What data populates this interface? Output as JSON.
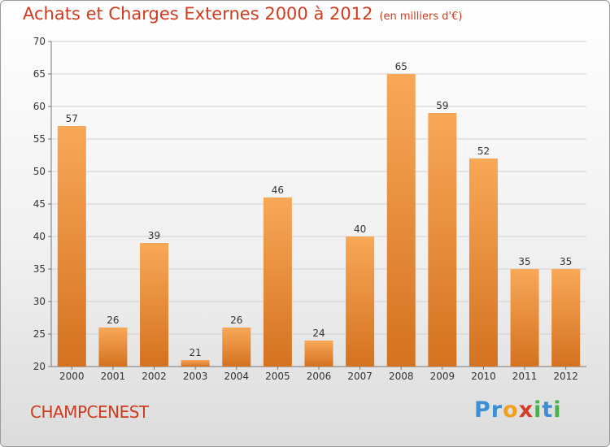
{
  "title": "Achats et Charges Externes 2000 à 2012",
  "subtitle": "(en milliers d'€)",
  "commune": "CHAMPCENEST",
  "logo": {
    "letters": [
      "P",
      "r",
      "o",
      "x",
      "i",
      "t",
      "i"
    ],
    "colors": [
      "#3b8fd6",
      "#3b8fd6",
      "#f0a020",
      "#d63b2a",
      "#4ab04a",
      "#3b8fd6",
      "#4ab04a"
    ]
  },
  "chart_data": {
    "type": "bar",
    "title": "Achats et Charges Externes 2000 à 2012",
    "subtitle": "(en milliers d'€)",
    "categories": [
      "2000",
      "2001",
      "2002",
      "2003",
      "2004",
      "2005",
      "2006",
      "2007",
      "2008",
      "2009",
      "2010",
      "2011",
      "2012"
    ],
    "values": [
      57,
      26,
      39,
      21,
      26,
      46,
      24,
      40,
      65,
      59,
      52,
      35,
      35
    ],
    "ylim": [
      20,
      70
    ],
    "yticks": [
      20,
      25,
      30,
      35,
      40,
      45,
      50,
      55,
      60,
      65,
      70
    ],
    "xlabel": "",
    "ylabel": "",
    "grid": true,
    "colors": {
      "bar_top": "#f8a858",
      "bar_bottom": "#d47220",
      "grid": "#d0d0d0",
      "text": "#333333"
    }
  }
}
